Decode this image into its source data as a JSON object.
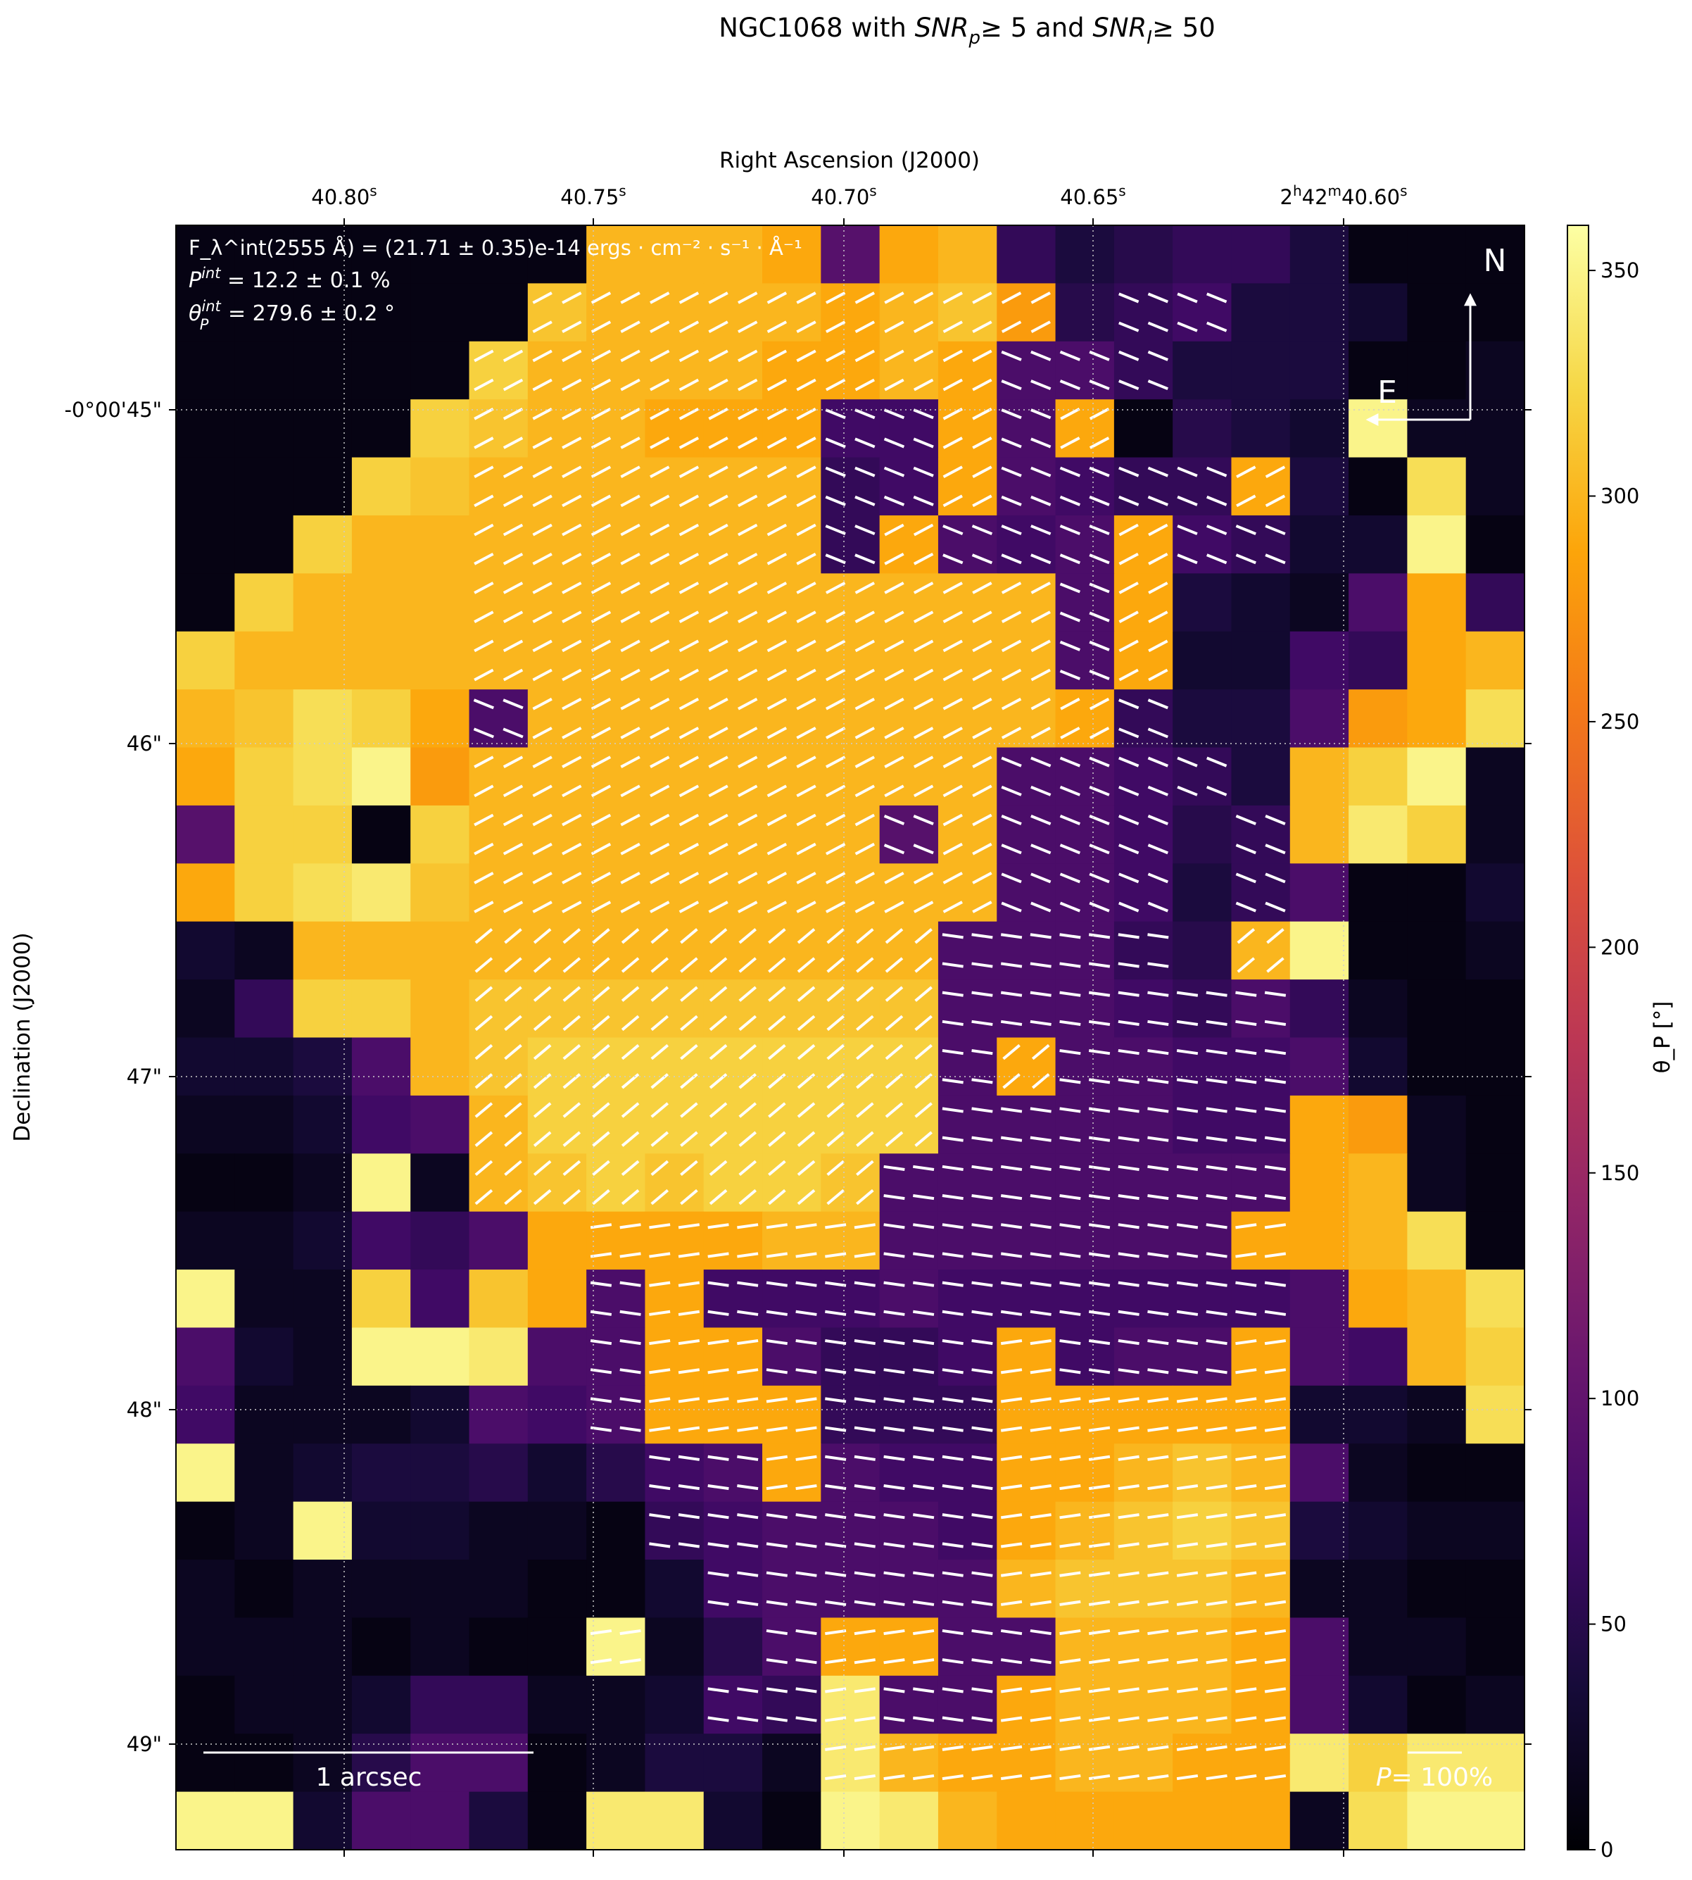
{
  "title": {
    "prefix": "NGC1068 with ",
    "snr_p": "SNR",
    "snr_p_sub": "p",
    "mid": "≥  5 and ",
    "snr_i": "SNR",
    "snr_i_sub": "I",
    "suffix": "≥  50"
  },
  "chart_data": {
    "type": "heatmap",
    "title": "NGC1068 with SNR_p ≥ 5 and SNR_I ≥ 50",
    "xlabel": "Right Ascension (J2000)",
    "ylabel": "Declination (J2000)",
    "colorbar_label": "θ_P [°]",
    "colormap": "inferno",
    "clim": [
      0,
      360
    ],
    "grid": true,
    "x_ticks": [
      {
        "main": "40.80",
        "sup": "s"
      },
      {
        "main": "40.75",
        "sup": "s"
      },
      {
        "main": "40.70",
        "sup": "s"
      },
      {
        "main": "40.65",
        "sup": "s"
      },
      {
        "main": "2",
        "sup": "h",
        "main2": "42",
        "sup2": "m",
        "main3": "40.60",
        "sup3": "s"
      }
    ],
    "y_ticks": [
      "-0°00'45\"",
      "46\"",
      "47\"",
      "48\"",
      "49\""
    ],
    "colorbar_ticks": [
      0,
      50,
      100,
      150,
      200,
      250,
      300,
      350
    ],
    "values_deg": [
      [
        10,
        10,
        10,
        10,
        10,
        10,
        10,
        300,
        300,
        300,
        290,
        90,
        290,
        300,
        60,
        40,
        50,
        60,
        60,
        40,
        10,
        10,
        10
      ],
      [
        10,
        10,
        10,
        10,
        10,
        10,
        310,
        300,
        300,
        300,
        300,
        290,
        300,
        310,
        280,
        50,
        60,
        70,
        40,
        40,
        30,
        10,
        10
      ],
      [
        10,
        10,
        10,
        10,
        10,
        320,
        300,
        300,
        300,
        300,
        290,
        290,
        300,
        290,
        80,
        80,
        60,
        40,
        40,
        40,
        10,
        10,
        20
      ],
      [
        10,
        10,
        10,
        10,
        320,
        310,
        300,
        300,
        290,
        290,
        290,
        70,
        70,
        290,
        80,
        290,
        10,
        50,
        40,
        30,
        350,
        20,
        20
      ],
      [
        10,
        10,
        10,
        320,
        310,
        300,
        300,
        300,
        300,
        300,
        300,
        60,
        70,
        290,
        80,
        70,
        60,
        60,
        290,
        40,
        10,
        330,
        20
      ],
      [
        10,
        10,
        320,
        300,
        300,
        300,
        300,
        300,
        300,
        300,
        300,
        60,
        290,
        80,
        70,
        80,
        290,
        70,
        60,
        30,
        30,
        350,
        10
      ],
      [
        10,
        320,
        300,
        300,
        300,
        300,
        300,
        300,
        300,
        300,
        300,
        300,
        300,
        300,
        300,
        80,
        290,
        40,
        30,
        20,
        80,
        290,
        60
      ],
      [
        320,
        300,
        300,
        300,
        300,
        300,
        300,
        300,
        300,
        300,
        300,
        300,
        300,
        300,
        300,
        80,
        290,
        30,
        30,
        70,
        60,
        290,
        300
      ],
      [
        300,
        310,
        330,
        320,
        290,
        80,
        300,
        300,
        300,
        300,
        300,
        300,
        300,
        300,
        300,
        290,
        60,
        40,
        40,
        80,
        280,
        290,
        330
      ],
      [
        290,
        320,
        330,
        350,
        280,
        300,
        300,
        300,
        300,
        300,
        300,
        300,
        300,
        300,
        80,
        80,
        70,
        60,
        40,
        300,
        320,
        350,
        20
      ],
      [
        90,
        320,
        320,
        10,
        320,
        300,
        300,
        300,
        300,
        300,
        300,
        300,
        90,
        300,
        80,
        80,
        70,
        50,
        60,
        300,
        340,
        320,
        20
      ],
      [
        290,
        320,
        330,
        340,
        310,
        300,
        300,
        300,
        300,
        300,
        300,
        300,
        300,
        300,
        80,
        80,
        70,
        40,
        60,
        80,
        10,
        10,
        30
      ],
      [
        30,
        20,
        300,
        300,
        300,
        300,
        300,
        300,
        300,
        300,
        300,
        300,
        300,
        80,
        80,
        80,
        60,
        50,
        300,
        350,
        10,
        10,
        20
      ],
      [
        20,
        60,
        320,
        320,
        300,
        310,
        310,
        310,
        310,
        310,
        310,
        310,
        310,
        80,
        80,
        80,
        70,
        60,
        80,
        60,
        20,
        10,
        10
      ],
      [
        30,
        30,
        40,
        80,
        300,
        310,
        320,
        320,
        320,
        320,
        320,
        320,
        320,
        80,
        290,
        80,
        80,
        70,
        70,
        80,
        30,
        10,
        10
      ],
      [
        20,
        20,
        30,
        70,
        80,
        300,
        320,
        320,
        320,
        320,
        320,
        320,
        320,
        80,
        80,
        80,
        80,
        70,
        70,
        290,
        280,
        20,
        10
      ],
      [
        10,
        10,
        20,
        350,
        20,
        300,
        310,
        320,
        310,
        320,
        320,
        310,
        80,
        80,
        80,
        80,
        80,
        80,
        80,
        290,
        300,
        20,
        10
      ],
      [
        20,
        20,
        30,
        70,
        60,
        80,
        290,
        290,
        290,
        290,
        300,
        300,
        80,
        80,
        80,
        80,
        80,
        80,
        290,
        290,
        300,
        330,
        10
      ],
      [
        350,
        20,
        20,
        320,
        70,
        310,
        290,
        80,
        290,
        70,
        70,
        70,
        80,
        70,
        70,
        70,
        70,
        70,
        70,
        80,
        290,
        300,
        330
      ],
      [
        80,
        30,
        20,
        350,
        350,
        340,
        80,
        80,
        290,
        290,
        80,
        60,
        60,
        70,
        290,
        70,
        80,
        80,
        290,
        80,
        70,
        300,
        320
      ],
      [
        70,
        20,
        20,
        20,
        30,
        80,
        70,
        80,
        290,
        290,
        290,
        60,
        60,
        60,
        290,
        290,
        290,
        290,
        290,
        30,
        30,
        20,
        330
      ],
      [
        350,
        20,
        30,
        40,
        40,
        50,
        30,
        50,
        70,
        80,
        290,
        80,
        70,
        70,
        290,
        290,
        300,
        310,
        300,
        80,
        20,
        10,
        10
      ],
      [
        10,
        20,
        350,
        30,
        30,
        20,
        20,
        10,
        60,
        70,
        80,
        80,
        80,
        70,
        290,
        300,
        310,
        320,
        310,
        40,
        30,
        20,
        20
      ],
      [
        20,
        10,
        20,
        20,
        20,
        20,
        10,
        10,
        30,
        70,
        80,
        80,
        80,
        80,
        300,
        310,
        310,
        310,
        300,
        20,
        20,
        10,
        10
      ],
      [
        20,
        20,
        20,
        10,
        20,
        10,
        10,
        350,
        20,
        50,
        80,
        290,
        290,
        80,
        80,
        300,
        300,
        300,
        290,
        80,
        20,
        20,
        10
      ],
      [
        10,
        20,
        20,
        30,
        60,
        60,
        20,
        20,
        30,
        70,
        60,
        340,
        80,
        80,
        290,
        300,
        300,
        300,
        290,
        80,
        30,
        10,
        20
      ],
      [
        10,
        10,
        20,
        50,
        80,
        80,
        10,
        20,
        40,
        40,
        20,
        340,
        300,
        290,
        290,
        300,
        300,
        290,
        290,
        340,
        320,
        340,
        340
      ],
      [
        350,
        350,
        30,
        80,
        80,
        40,
        10,
        340,
        340,
        30,
        10,
        350,
        340,
        300,
        290,
        290,
        290,
        290,
        290,
        20,
        330,
        350,
        350
      ]
    ]
  },
  "annotations": {
    "flux": "F_λ^int(2555 Å) = (21.71 ± 0.35)e-14 ergs · cm⁻² · s⁻¹ · Å⁻¹",
    "flux_parts": {
      "F": "F",
      "sup": "int",
      "sub": "λ",
      "rest": "(2555 Å) = (21.71 ± 0.35)e-14 ",
      "units": "ergs · cm",
      "e1": "−2",
      "u2": " · s",
      "e2": "−1",
      "u3": " · Å",
      "e3": "−1"
    },
    "pol": {
      "P": "P",
      "sup": "int",
      "rest": " = 12.2 ± 0.1 %"
    },
    "angle": {
      "theta": "θ",
      "sup": "int",
      "sub": "P",
      "rest": " = 279.6 ± 0.2 °"
    },
    "compass_north": "N",
    "compass_east": "E",
    "scale_bar": "1 arcsec",
    "pol_scale": {
      "P": "P",
      "rest": "= 100%"
    }
  },
  "colors": {
    "vector": "#ffffff",
    "grid": "#cccccc"
  }
}
